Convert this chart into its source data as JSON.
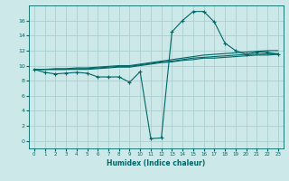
{
  "bg_color": "#cce8e8",
  "grid_color": "#aacfcf",
  "line_color": "#006666",
  "xlabel": "Humidex (Indice chaleur)",
  "xlim": [
    -0.5,
    23.5
  ],
  "ylim": [
    -1,
    18
  ],
  "yticks": [
    0,
    2,
    4,
    6,
    8,
    10,
    12,
    14,
    16
  ],
  "xticks": [
    0,
    1,
    2,
    3,
    4,
    5,
    6,
    7,
    8,
    9,
    10,
    11,
    12,
    13,
    14,
    15,
    16,
    17,
    18,
    19,
    20,
    21,
    22,
    23
  ],
  "series_with_markers": {
    "x": [
      0,
      1,
      2,
      3,
      4,
      5,
      6,
      7,
      8,
      9,
      10,
      11,
      12,
      13,
      14,
      15,
      16,
      17,
      18,
      19,
      20,
      21,
      22,
      23
    ],
    "y": [
      9.5,
      9.1,
      8.9,
      9.0,
      9.1,
      9.0,
      8.5,
      8.5,
      8.5,
      7.8,
      9.2,
      0.3,
      0.4,
      14.5,
      16.0,
      17.2,
      17.2,
      15.8,
      13.0,
      12.0,
      11.5,
      11.8,
      11.8,
      11.5
    ]
  },
  "series_smooth_1": {
    "x": [
      0,
      1,
      2,
      3,
      4,
      5,
      6,
      7,
      8,
      9,
      10,
      11,
      12,
      13,
      14,
      15,
      16,
      17,
      18,
      19,
      20,
      21,
      22,
      23
    ],
    "y": [
      9.5,
      9.5,
      9.6,
      9.6,
      9.7,
      9.7,
      9.8,
      9.9,
      10.0,
      10.0,
      10.2,
      10.4,
      10.6,
      10.8,
      11.0,
      11.2,
      11.4,
      11.5,
      11.6,
      11.7,
      11.8,
      11.9,
      12.0,
      12.0
    ]
  },
  "series_smooth_2": {
    "x": [
      0,
      1,
      2,
      3,
      4,
      5,
      6,
      7,
      8,
      9,
      10,
      11,
      12,
      13,
      14,
      15,
      16,
      17,
      18,
      19,
      20,
      21,
      22,
      23
    ],
    "y": [
      9.5,
      9.5,
      9.5,
      9.5,
      9.6,
      9.6,
      9.7,
      9.8,
      9.9,
      9.9,
      10.1,
      10.3,
      10.5,
      10.6,
      10.8,
      11.0,
      11.1,
      11.2,
      11.3,
      11.4,
      11.5,
      11.5,
      11.6,
      11.6
    ]
  },
  "series_smooth_3": {
    "x": [
      0,
      1,
      2,
      3,
      4,
      5,
      6,
      7,
      8,
      9,
      10,
      11,
      12,
      13,
      14,
      15,
      16,
      17,
      18,
      19,
      20,
      21,
      22,
      23
    ],
    "y": [
      9.5,
      9.5,
      9.5,
      9.5,
      9.5,
      9.5,
      9.6,
      9.7,
      9.8,
      9.8,
      10.0,
      10.2,
      10.4,
      10.5,
      10.7,
      10.8,
      11.0,
      11.0,
      11.1,
      11.2,
      11.3,
      11.4,
      11.4,
      11.5
    ]
  }
}
